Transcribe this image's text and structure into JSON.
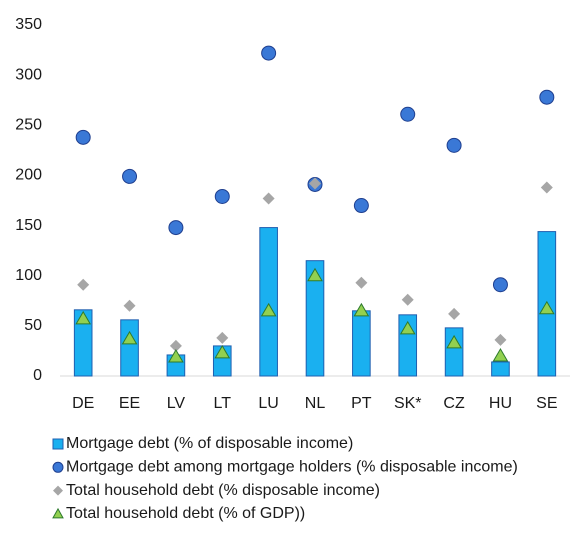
{
  "chart_data": {
    "type": "bar",
    "categories": [
      "DE",
      "EE",
      "LV",
      "LT",
      "LU",
      "NL",
      "PT",
      "SK*",
      "CZ",
      "HU",
      "SE"
    ],
    "series": [
      {
        "name": "Mortgage debt (% of disposable income)",
        "marker": "bar",
        "color": "#1ab0f0",
        "values": [
          66,
          56,
          21,
          30,
          148,
          115,
          65,
          61,
          48,
          14,
          144
        ]
      },
      {
        "name": "Mortgage debt among mortgage holders (% disposable income)",
        "marker": "circle",
        "color": "#3a78d6",
        "values": [
          238,
          199,
          148,
          179,
          322,
          191,
          170,
          261,
          230,
          91,
          278
        ]
      },
      {
        "name": "Total household debt (% disposable income)",
        "marker": "diamond",
        "color": "#a6a6a6",
        "values": [
          91,
          70,
          30,
          38,
          177,
          192,
          93,
          76,
          62,
          36,
          188
        ]
      },
      {
        "name": "Total household debt (% of GDP))",
        "marker": "triangle",
        "color": "#92d050",
        "values": [
          57,
          37,
          19,
          23,
          65,
          100,
          65,
          47,
          33,
          20,
          67
        ]
      }
    ],
    "ylim": [
      0,
      350
    ],
    "yticks": [
      0,
      50,
      100,
      150,
      200,
      250,
      300,
      350
    ],
    "grid": false
  }
}
